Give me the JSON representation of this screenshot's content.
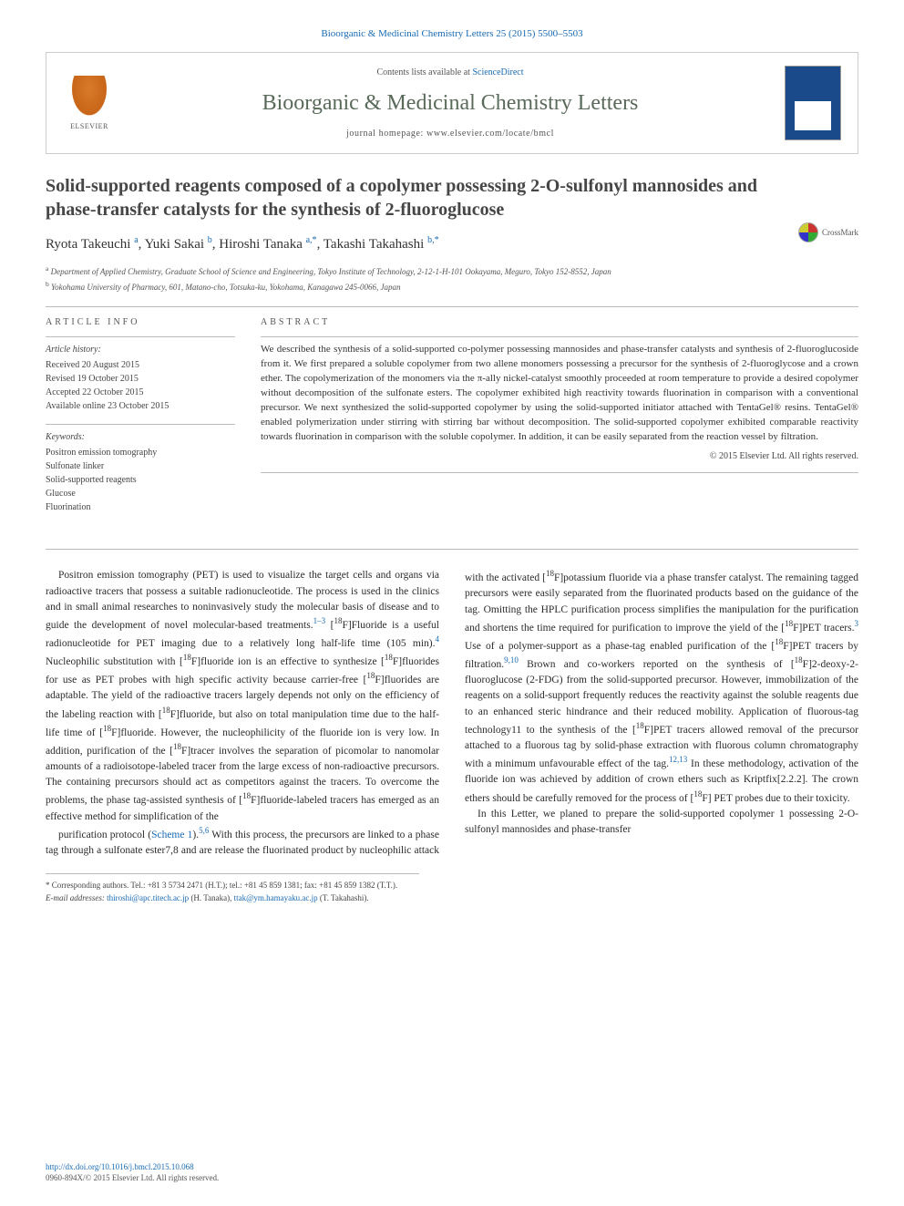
{
  "top_citation": "Bioorganic & Medicinal Chemistry Letters 25 (2015) 5500–5503",
  "header": {
    "contents_prefix": "Contents lists available at ",
    "contents_link": "ScienceDirect",
    "journal_name": "Bioorganic & Medicinal Chemistry Letters",
    "homepage_label": "journal homepage: www.elsevier.com/locate/bmcl",
    "publisher_logo_text": "ELSEVIER"
  },
  "crossmark_label": "CrossMark",
  "title": "Solid-supported reagents composed of a copolymer possessing 2-O-sulfonyl mannosides and phase-transfer catalysts for the synthesis of 2-fluoroglucose",
  "authors_html": "Ryota Takeuchi <sup>a</sup>, Yuki Sakai <sup>b</sup>, Hiroshi Tanaka <sup class='link'>a,*</sup>, Takashi Takahashi <sup class='link'>b,*</sup>",
  "affiliations": [
    "a Department of Applied Chemistry, Graduate School of Science and Engineering, Tokyo Institute of Technology, 2-12-1-H-101 Ookayama, Meguro, Tokyo 152-8552, Japan",
    "b Yokohama University of Pharmacy, 601, Matano-cho, Totsuka-ku, Yokohama, Kanagawa 245-0066, Japan"
  ],
  "article_info": {
    "heading": "ARTICLE INFO",
    "history_label": "Article history:",
    "history": [
      "Received 20 August 2015",
      "Revised 19 October 2015",
      "Accepted 22 October 2015",
      "Available online 23 October 2015"
    ],
    "keywords_label": "Keywords:",
    "keywords": [
      "Positron emission tomography",
      "Sulfonate linker",
      "Solid-supported reagents",
      "Glucose",
      "Fluorination"
    ]
  },
  "abstract": {
    "heading": "ABSTRACT",
    "text": "We described the synthesis of a solid-supported co-polymer possessing mannosides and phase-transfer catalysts and synthesis of 2-fluoroglucoside from it. We first prepared a soluble copolymer from two allene monomers possessing a precursor for the synthesis of 2-fluoroglycose and a crown ether. The copolymerization of the monomers via the π-ally nickel-catalyst smoothly proceeded at room temperature to provide a desired copolymer without decomposition of the sulfonate esters. The copolymer exhibited high reactivity towards fluorination in comparison with a conventional precursor. We next synthesized the solid-supported copolymer by using the solid-supported initiator attached with TentaGel® resins. TentaGel® enabled polymerization under stirring with stirring bar without decomposition. The solid-supported copolymer exhibited comparable reactivity towards fluorination in comparison with the soluble copolymer. In addition, it can be easily separated from the reaction vessel by filtration.",
    "copyright": "© 2015 Elsevier Ltd. All rights reserved."
  },
  "body": {
    "p1": "Positron emission tomography (PET) is used to visualize the target cells and organs via radioactive tracers that possess a suitable radionucleotide. The process is used in the clinics and in small animal researches to noninvasively study the molecular basis of disease and to guide the development of novel molecular-based treatments.1–3 [18F]Fluoride is a useful radionucleotide for PET imaging due to a relatively long half-life time (105 min).4 Nucleophilic substitution with [18F]fluoride ion is an effective to synthesize [18F]fluorides for use as PET probes with high specific activity because carrier-free [18F]fluorides are adaptable. The yield of the radioactive tracers largely depends not only on the efficiency of the labeling reaction with [18F]fluoride, but also on total manipulation time due to the half-life time of [18F]fluoride. However, the nucleophilicity of the fluoride ion is very low. In addition, purification of the [18F]tracer involves the separation of picomolar to nanomolar amounts of a radioisotope-labeled tracer from the large excess of non-radioactive precursors. The containing precursors should act as competitors against the tracers. To overcome the problems, the phase tag-assisted synthesis of [18F]fluoride-labeled tracers has emerged as an effective method for simplification of the",
    "p2": "purification protocol (Scheme 1).5,6 With this process, the precursors are linked to a phase tag through a sulfonate ester7,8 and are release the fluorinated product by nucleophilic attack with the activated [18F]potassium fluoride via a phase transfer catalyst. The remaining tagged precursors were easily separated from the fluorinated products based on the guidance of the tag. Omitting the HPLC purification process simplifies the manipulation for the purification and shortens the time required for purification to improve the yield of the [18F]PET tracers.3 Use of a polymer-support as a phase-tag enabled purification of the [18F]PET tracers by filtration.9,10 Brown and co-workers reported on the synthesis of [18F]2-deoxy-2-fluoroglucose (2-FDG) from the solid-supported precursor. However, immobilization of the reagents on a solid-support frequently reduces the reactivity against the soluble reagents due to an enhanced steric hindrance and their reduced mobility. Application of fluorous-tag technology11 to the synthesis of the [18F]PET tracers allowed removal of the precursor attached to a fluorous tag by solid-phase extraction with fluorous column chromatography with a minimum unfavourable effect of the tag.12,13 In these methodology, activation of the fluoride ion was achieved by addition of crown ethers such as Kriptfix[2.2.2]. The crown ethers should be carefully removed for the process of [18F] PET probes due to their toxicity.",
    "p3": "In this Letter, we planed to prepare the solid-supported copolymer 1 possessing 2-O-sulfonyl mannosides and phase-transfer"
  },
  "footnotes": {
    "corr_label": "* Corresponding authors. Tel.: +81 3 5734 2471 (H.T.); tel.: +81 45 859 1381; fax: +81 45 859 1382 (T.T.).",
    "email_label": "E-mail addresses:",
    "email1": "thiroshi@apc.titech.ac.jp",
    "email1_who": "(H. Tanaka),",
    "email2": "ttak@ym.hamayaku.ac.jp",
    "email2_who": "(T. Takahashi)."
  },
  "footer": {
    "doi": "http://dx.doi.org/10.1016/j.bmcl.2015.10.068",
    "issn": "0960-894X/© 2015 Elsevier Ltd. All rights reserved."
  },
  "colors": {
    "link": "#1a6bb3",
    "heading": "#5a6a5a",
    "text": "#333333",
    "rule": "#bbbbbb"
  }
}
